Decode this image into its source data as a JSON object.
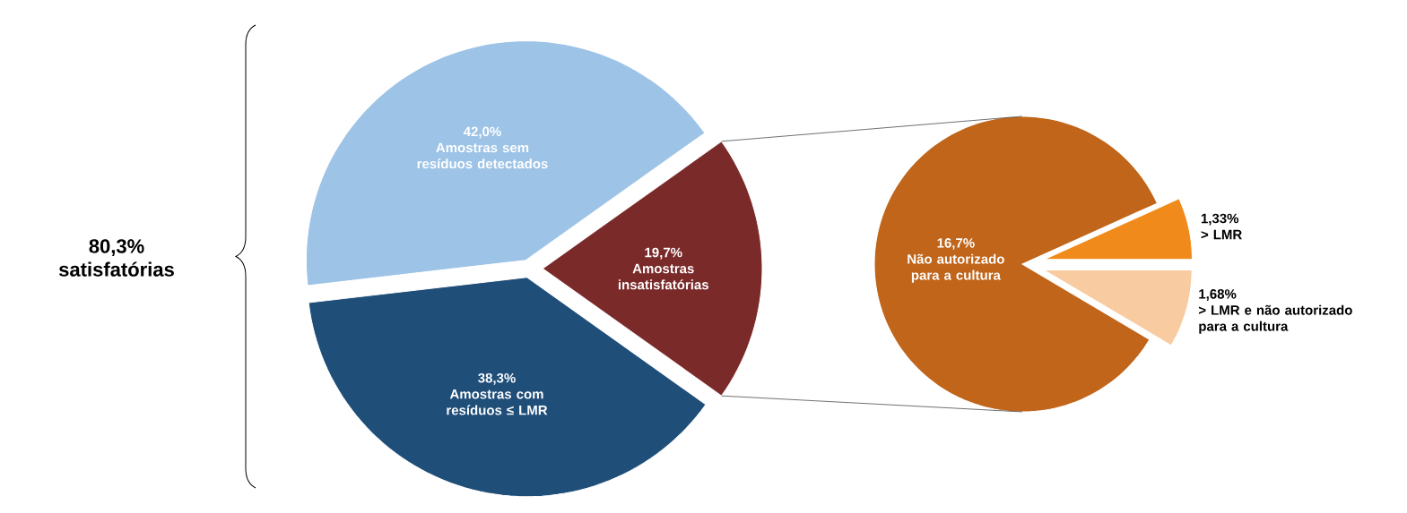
{
  "chart_data": [
    {
      "type": "pie",
      "categories": [
        "Amostras sem resíduos detectados",
        "Amostras com resíduos ≤ LMR",
        "Amostras insatisfatórias"
      ],
      "values": [
        42.0,
        38.3,
        19.7
      ],
      "value_labels": [
        "42,0%",
        "38,3%",
        "19,7%"
      ],
      "colors": [
        "#9dc3e6",
        "#1f4e79",
        "#7b2a2a"
      ],
      "annotations": [
        "80,3% satisfatórias"
      ]
    },
    {
      "type": "pie",
      "categories": [
        "Não autorizado para a cultura",
        "> LMR",
        "> LMR e não autorizado para a cultura"
      ],
      "values": [
        16.7,
        1.33,
        1.68
      ],
      "value_labels": [
        "16,7%",
        "1,33%",
        "1,68%"
      ],
      "colors": [
        "#c0651a",
        "#f08a1a",
        "#f8cba0"
      ]
    }
  ]
}
